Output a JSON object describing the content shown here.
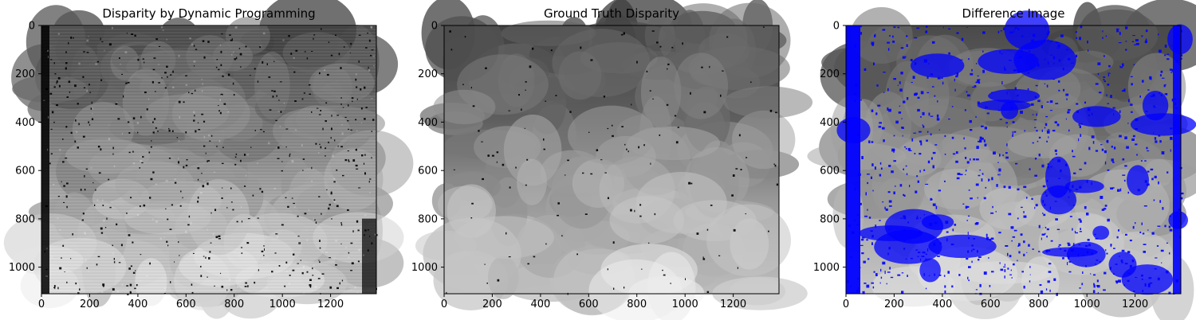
{
  "figure": {
    "panel_count": 3
  },
  "chart_data": [
    {
      "type": "heatmap",
      "title": "Disparity by Dynamic Programming",
      "xlabel": "",
      "ylabel": "",
      "xlim": [
        0,
        1390
      ],
      "ylim": [
        0,
        1110
      ],
      "x_inverted": false,
      "y_inverted": true,
      "xticks": [
        0,
        200,
        400,
        600,
        800,
        1000,
        1200
      ],
      "yticks": [
        0,
        200,
        400,
        600,
        800,
        1000
      ],
      "colormap": "gray",
      "highlight_color": "",
      "description_key": "dp"
    },
    {
      "type": "heatmap",
      "title": "Ground Truth Disparity",
      "xlabel": "",
      "ylabel": "",
      "xlim": [
        0,
        1390
      ],
      "ylim": [
        0,
        1110
      ],
      "x_inverted": false,
      "y_inverted": true,
      "xticks": [
        0,
        200,
        400,
        600,
        800,
        1000,
        1200
      ],
      "yticks": [
        0,
        200,
        400,
        600,
        800,
        1000
      ],
      "colormap": "gray",
      "highlight_color": "",
      "description_key": "gt"
    },
    {
      "type": "heatmap",
      "title": "Difference Image",
      "xlabel": "",
      "ylabel": "",
      "xlim": [
        0,
        1390
      ],
      "ylim": [
        0,
        1110
      ],
      "x_inverted": false,
      "y_inverted": true,
      "xticks": [
        0,
        200,
        400,
        600,
        800,
        1000,
        1200
      ],
      "yticks": [
        0,
        200,
        400,
        600,
        800,
        1000
      ],
      "colormap": "gray",
      "highlight_color": "#0000ff",
      "description_key": "diff"
    }
  ]
}
